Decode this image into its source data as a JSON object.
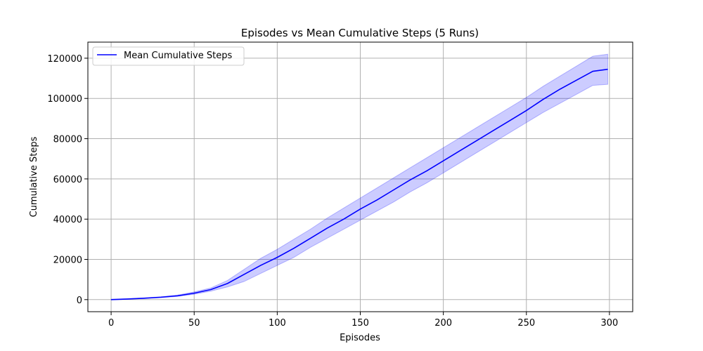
{
  "chart_data": {
    "type": "line",
    "title": "Episodes vs Mean Cumulative Steps (5 Runs)",
    "xlabel": "Episodes",
    "ylabel": "Cumulative Steps",
    "xlim": [
      -14,
      314
    ],
    "ylim": [
      -6000,
      128000
    ],
    "xticks": [
      0,
      50,
      100,
      150,
      200,
      250,
      300
    ],
    "yticks": [
      0,
      20000,
      40000,
      60000,
      80000,
      100000,
      120000
    ],
    "grid": true,
    "legend_placement": "top-left",
    "series": [
      {
        "name": "Mean Cumulative Steps",
        "color": "#0000ff",
        "band_color": "#0000ff",
        "x": [
          0,
          10,
          20,
          30,
          40,
          50,
          60,
          70,
          80,
          90,
          100,
          110,
          120,
          130,
          140,
          150,
          160,
          170,
          180,
          190,
          200,
          210,
          220,
          230,
          240,
          250,
          260,
          270,
          280,
          290,
          299
        ],
        "y": [
          0,
          300,
          700,
          1200,
          1900,
          3200,
          5000,
          8000,
          12500,
          17000,
          21000,
          25500,
          30500,
          35500,
          40000,
          45000,
          49500,
          54500,
          59500,
          64000,
          69000,
          74000,
          79000,
          84000,
          89000,
          94000,
          99500,
          104500,
          109000,
          113500,
          114500
        ],
        "lower": [
          0,
          250,
          550,
          1000,
          1600,
          2700,
          4200,
          6300,
          9000,
          13000,
          17000,
          21000,
          26000,
          30500,
          35000,
          39500,
          44000,
          48500,
          53500,
          58000,
          63000,
          68000,
          73000,
          78000,
          83000,
          88000,
          93000,
          97500,
          102000,
          106500,
          107000
        ],
        "upper": [
          200,
          400,
          850,
          1400,
          2300,
          3800,
          5800,
          9500,
          15000,
          20500,
          25000,
          30000,
          35000,
          40500,
          45500,
          50500,
          55500,
          60500,
          65500,
          70500,
          75500,
          80500,
          85500,
          90500,
          95500,
          100500,
          106000,
          111000,
          116000,
          121000,
          122000
        ]
      }
    ]
  }
}
